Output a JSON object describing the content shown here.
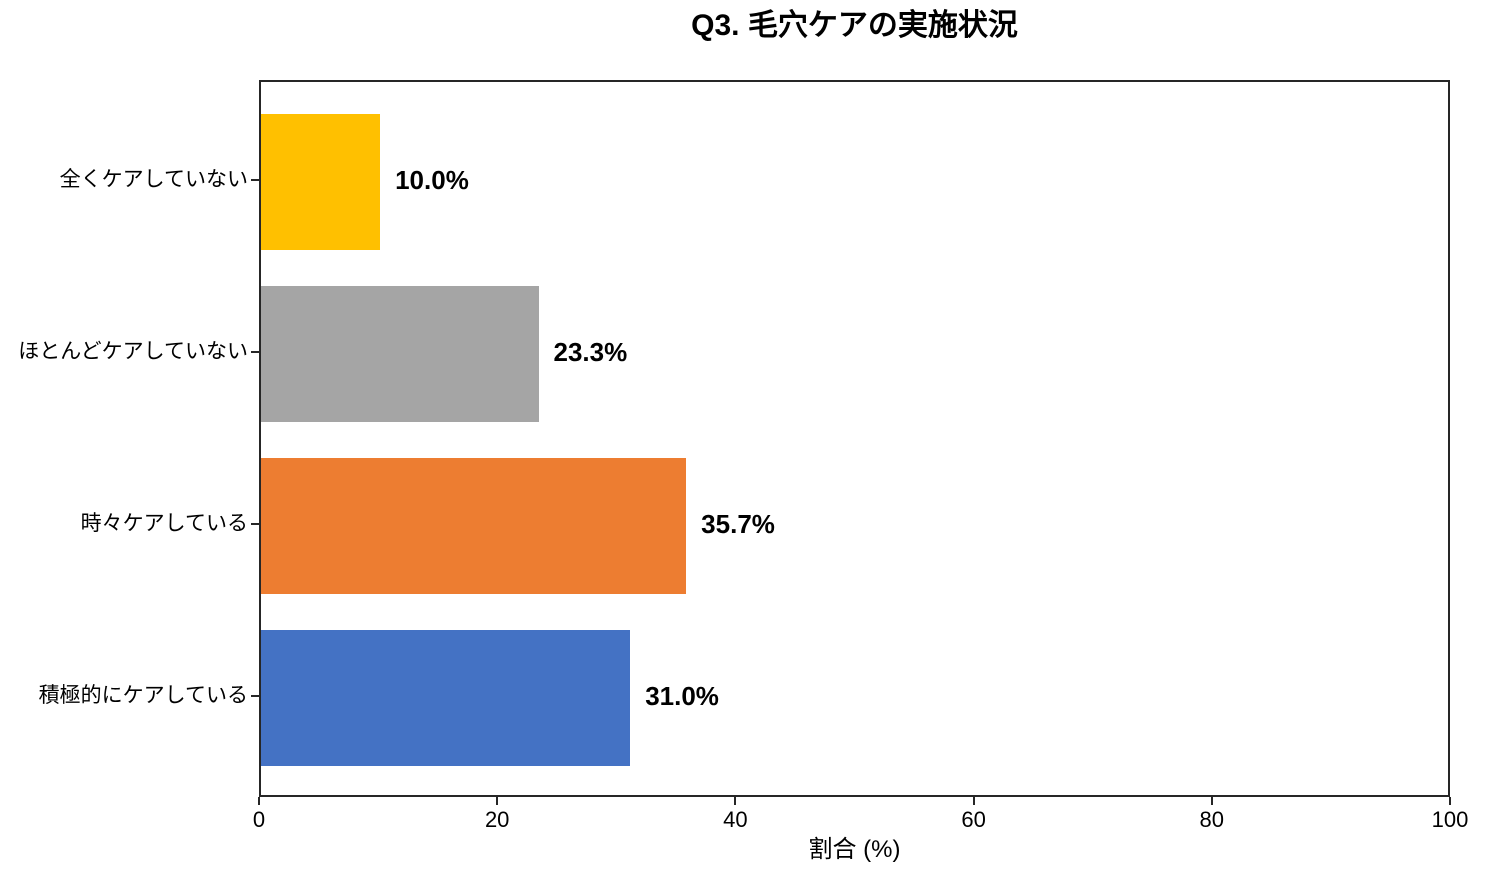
{
  "chart_data": {
    "type": "bar",
    "orientation": "horizontal",
    "title": "Q3. 毛穴ケアの実施状況",
    "xlabel": "割合 (%)",
    "ylabel": "",
    "xlim": [
      0,
      100
    ],
    "x_ticks": [
      "0",
      "20",
      "40",
      "60",
      "80",
      "100"
    ],
    "x_tick_values": [
      0,
      20,
      40,
      60,
      80,
      100
    ],
    "categories": [
      "全くケアしていない",
      "ほとんどケアしていない",
      "時々ケアしている",
      "積極的にケアしている"
    ],
    "values": [
      10.0,
      23.3,
      35.7,
      31.0
    ],
    "value_labels": [
      "10.0%",
      "23.3%",
      "35.7%",
      "31.0%"
    ],
    "bar_colors": [
      "#FFC000",
      "#A5A5A5",
      "#ED7D31",
      "#4472C4"
    ],
    "grid": false,
    "legend": null
  },
  "colors": {
    "background": "#ffffff",
    "text": "#000000",
    "spine": "#262626"
  }
}
